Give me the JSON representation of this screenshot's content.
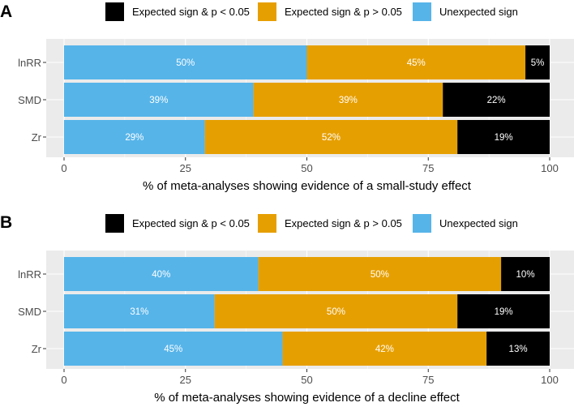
{
  "chart_data": [
    {
      "type": "bar",
      "orientation": "horizontal",
      "stacked": true,
      "panel_label": "A",
      "categories": [
        "lnRR",
        "SMD",
        "Zr"
      ],
      "series": [
        {
          "name": "Unexpected sign",
          "color": "#56B4E9",
          "values": [
            50,
            39,
            29
          ],
          "labels": [
            "50%",
            "39%",
            "29%"
          ]
        },
        {
          "name": "Expected sign & p > 0.05",
          "color": "#E69F00",
          "values": [
            45,
            39,
            52
          ],
          "labels": [
            "45%",
            "39%",
            "52%"
          ]
        },
        {
          "name": "Expected sign & p < 0.05",
          "color": "#000000",
          "values": [
            5,
            22,
            19
          ],
          "labels": [
            "5%",
            "22%",
            "19%"
          ]
        }
      ],
      "legend_order": [
        "Expected sign & p < 0.05",
        "Expected sign & p > 0.05",
        "Unexpected sign"
      ],
      "legend_position": "top",
      "xlim": [
        0,
        100
      ],
      "xticks": [
        0,
        25,
        50,
        75,
        100
      ],
      "xlabel": "% of meta-analyses showing evidence of a small-study effect",
      "ylabel": ""
    },
    {
      "type": "bar",
      "orientation": "horizontal",
      "stacked": true,
      "panel_label": "B",
      "categories": [
        "lnRR",
        "SMD",
        "Zr"
      ],
      "series": [
        {
          "name": "Unexpected sign",
          "color": "#56B4E9",
          "values": [
            40,
            31,
            45
          ],
          "labels": [
            "40%",
            "31%",
            "45%"
          ]
        },
        {
          "name": "Expected sign & p > 0.05",
          "color": "#E69F00",
          "values": [
            50,
            50,
            42
          ],
          "labels": [
            "50%",
            "50%",
            "42%"
          ]
        },
        {
          "name": "Expected sign & p < 0.05",
          "color": "#000000",
          "values": [
            10,
            19,
            13
          ],
          "labels": [
            "10%",
            "19%",
            "13%"
          ]
        }
      ],
      "legend_order": [
        "Expected sign & p < 0.05",
        "Expected sign & p > 0.05",
        "Unexpected sign"
      ],
      "legend_position": "top",
      "xlim": [
        0,
        100
      ],
      "xticks": [
        0,
        25,
        50,
        75,
        100
      ],
      "xlabel": "% of meta-analyses showing evidence of a decline effect",
      "ylabel": ""
    }
  ]
}
